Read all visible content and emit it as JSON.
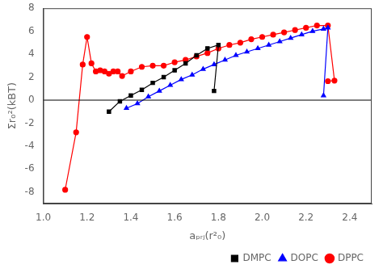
{
  "chart_data": {
    "type": "line",
    "x_label": "aₚᵣⱼ(r²₀)",
    "y_label": "Σr₀²(kBT)",
    "series": [
      {
        "name": "DMPC",
        "color": "#000000",
        "marker": "square",
        "x": [
          1.3,
          1.35,
          1.4,
          1.45,
          1.5,
          1.55,
          1.6,
          1.65,
          1.7,
          1.75,
          1.8,
          1.78
        ],
        "values": [
          -1.0,
          -0.1,
          0.4,
          0.9,
          1.5,
          2.0,
          2.6,
          3.2,
          3.9,
          4.5,
          4.8,
          0.8
        ]
      },
      {
        "name": "DOPC",
        "color": "#0000ff",
        "marker": "triangle",
        "x": [
          1.38,
          1.43,
          1.48,
          1.53,
          1.58,
          1.63,
          1.68,
          1.73,
          1.78,
          1.83,
          1.88,
          1.93,
          1.98,
          2.03,
          2.08,
          2.13,
          2.18,
          2.23,
          2.28,
          2.3,
          2.28
        ],
        "values": [
          -0.7,
          -0.3,
          0.3,
          0.8,
          1.3,
          1.8,
          2.2,
          2.7,
          3.1,
          3.5,
          3.9,
          4.2,
          4.5,
          4.8,
          5.1,
          5.4,
          5.7,
          6.0,
          6.2,
          6.3,
          0.4
        ]
      },
      {
        "name": "DPPC",
        "color": "#ff0000",
        "marker": "circle",
        "x": [
          1.1,
          1.15,
          1.18,
          1.2,
          1.22,
          1.24,
          1.26,
          1.28,
          1.3,
          1.32,
          1.34,
          1.36,
          1.4,
          1.45,
          1.5,
          1.55,
          1.6,
          1.65,
          1.7,
          1.75,
          1.8,
          1.85,
          1.9,
          1.95,
          2.0,
          2.05,
          2.1,
          2.15,
          2.2,
          2.25,
          2.3,
          2.33,
          2.3
        ],
        "values": [
          -7.8,
          -2.8,
          3.1,
          5.5,
          3.2,
          2.5,
          2.6,
          2.5,
          2.3,
          2.5,
          2.5,
          2.1,
          2.5,
          2.9,
          3.0,
          3.0,
          3.3,
          3.5,
          3.8,
          4.1,
          4.5,
          4.8,
          5.0,
          5.3,
          5.5,
          5.7,
          5.9,
          6.1,
          6.3,
          6.5,
          6.5,
          1.7,
          1.65
        ]
      }
    ],
    "hline_y": 0,
    "xlim": [
      1.0,
      2.5
    ],
    "xticks": [
      {
        "value": 1.0,
        "label": "1.0"
      },
      1.2,
      1.4,
      1.6,
      1.8,
      {
        "value": 2.0,
        "label": "2.0"
      },
      2.2,
      2.4
    ],
    "ylim": [
      -9,
      8
    ],
    "yticks": [
      -8,
      -6,
      -4,
      -2,
      0,
      2,
      4,
      6,
      8
    ],
    "grid": false,
    "legend": "lower right"
  }
}
